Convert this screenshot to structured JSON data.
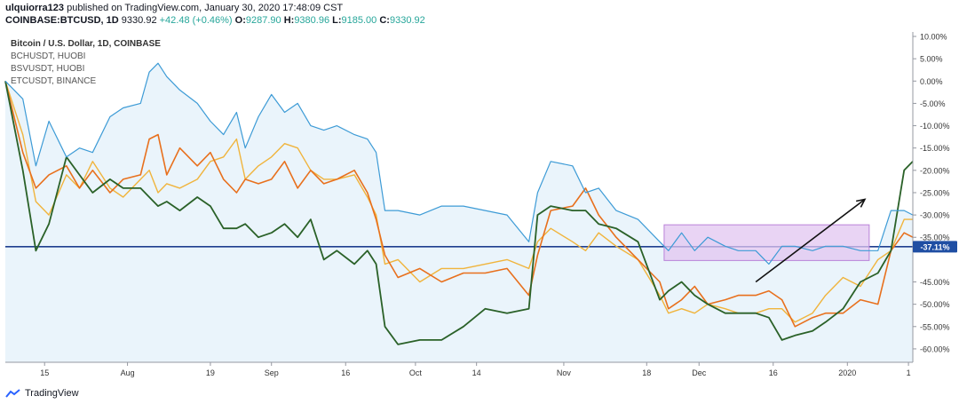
{
  "header": {
    "author": "ulquiorra123",
    "published": "published on TradingView.com, January 30, 2020 17:48:09 CST",
    "symbol": "COINBASE:BTCUSD, 1D",
    "last": "9330.92",
    "change": "+42.48 (+0.46%)",
    "o_label": "O:",
    "o_value": "9287.90",
    "h_label": "H:",
    "h_value": "9380.96",
    "l_label": "L:",
    "l_value": "9185.00",
    "c_label": "C:",
    "c_value": "9330.92"
  },
  "legend": {
    "main": "Bitcoin / U.S. Dollar, 1D, COINBASE",
    "items": [
      "BCHUSDT, HUOBI",
      "BSVUSDT, HUOBI",
      "ETCUSDT, BINANCE"
    ]
  },
  "footer": {
    "brand": "TradingView"
  },
  "colors": {
    "btc": "#3d9bd6",
    "btc_fill": "#eaf4fb",
    "bch": "#e8701d",
    "bsv": "#f0b43c",
    "etc": "#2a6128",
    "hline": "#1f3f8f",
    "rect_fill": "#e2c6f0",
    "rect_stroke": "#b982d8",
    "arrow": "#111111",
    "badge": "#1f4ea3"
  },
  "chart_data": {
    "type": "line",
    "y_unit": "%",
    "ylim": [
      -63,
      11
    ],
    "y_ticks": [
      10,
      5,
      0,
      -5,
      -10,
      -15,
      -20,
      -25,
      -30,
      -35,
      -45,
      -50,
      -55,
      -60
    ],
    "y_tick_labels": [
      "10.00%",
      "5.00%",
      "0.00%",
      "-5.00%",
      "-10.00%",
      "-15.00%",
      "-20.00%",
      "-25.00%",
      "-30.00%",
      "-35.00%",
      "-45.00%",
      "-50.00%",
      "-55.00%",
      "-60.00%"
    ],
    "x_range": [
      0,
      208
    ],
    "x_ticks": [
      {
        "x": 9,
        "label": "15"
      },
      {
        "x": 28,
        "label": "Aug"
      },
      {
        "x": 47,
        "label": "19"
      },
      {
        "x": 61,
        "label": "Sep"
      },
      {
        "x": 78,
        "label": "16"
      },
      {
        "x": 94,
        "label": "Oct"
      },
      {
        "x": 108,
        "label": "14"
      },
      {
        "x": 128,
        "label": "Nov"
      },
      {
        "x": 147,
        "label": "18"
      },
      {
        "x": 159,
        "label": "Dec"
      },
      {
        "x": 176,
        "label": "16"
      },
      {
        "x": 193,
        "label": "2020"
      },
      {
        "x": 207,
        "label": "1"
      }
    ],
    "current_level": -37.11,
    "current_label": "-37.11%",
    "series": [
      {
        "name": "Bitcoin / U.S. Dollar",
        "x": [
          0,
          4,
          7,
          10,
          14,
          17,
          20,
          24,
          27,
          31,
          33,
          35,
          37,
          40,
          44,
          47,
          50,
          53,
          55,
          58,
          61,
          64,
          67,
          70,
          73,
          76,
          80,
          83,
          85,
          87,
          90,
          95,
          100,
          105,
          110,
          115,
          120,
          122,
          125,
          130,
          133,
          136,
          140,
          145,
          150,
          152,
          155,
          158,
          161,
          165,
          168,
          172,
          175,
          178,
          181,
          185,
          188,
          192,
          196,
          200,
          203,
          206,
          208
        ],
        "y": [
          0,
          -4,
          -19,
          -9,
          -17,
          -15,
          -16,
          -8,
          -6,
          -5,
          2,
          4,
          1,
          -2,
          -5,
          -9,
          -12,
          -7,
          -15,
          -8,
          -3,
          -7,
          -5,
          -10,
          -11,
          -10,
          -12,
          -13,
          -16,
          -29,
          -29,
          -30,
          -28,
          -28,
          -29,
          -30,
          -36,
          -25,
          -18,
          -19,
          -25,
          -24,
          -29,
          -31,
          -36,
          -38,
          -34,
          -38,
          -35,
          -37,
          -38,
          -38,
          -41,
          -37,
          -37,
          -38,
          -37,
          -37,
          -38,
          -38,
          -29,
          -29,
          -30
        ]
      },
      {
        "name": "BCHUSDT",
        "x": [
          0,
          4,
          7,
          10,
          14,
          17,
          20,
          24,
          27,
          31,
          33,
          35,
          37,
          40,
          44,
          47,
          50,
          53,
          55,
          58,
          61,
          64,
          67,
          70,
          73,
          76,
          80,
          83,
          85,
          87,
          90,
          95,
          100,
          105,
          110,
          115,
          120,
          122,
          125,
          130,
          133,
          136,
          140,
          145,
          150,
          152,
          155,
          158,
          161,
          165,
          168,
          172,
          175,
          178,
          181,
          185,
          188,
          192,
          196,
          200,
          203,
          206,
          208
        ],
        "y": [
          0,
          -16,
          -24,
          -21,
          -19,
          -24,
          -20,
          -25,
          -22,
          -21,
          -13,
          -12,
          -21,
          -15,
          -19,
          -16,
          -22,
          -25,
          -22,
          -23,
          -22,
          -18,
          -24,
          -20,
          -23,
          -22,
          -20,
          -25,
          -31,
          -39,
          -44,
          -42,
          -45,
          -43,
          -43,
          -42,
          -48,
          -39,
          -29,
          -28,
          -24,
          -30,
          -35,
          -40,
          -45,
          -51,
          -49,
          -46,
          -50,
          -49,
          -48,
          -48,
          -47,
          -49,
          -55,
          -53,
          -52,
          -52,
          -49,
          -50,
          -38,
          -34,
          -35
        ]
      },
      {
        "name": "BSVUSDT",
        "x": [
          0,
          4,
          7,
          10,
          14,
          17,
          20,
          24,
          27,
          31,
          33,
          35,
          37,
          40,
          44,
          47,
          50,
          53,
          55,
          58,
          61,
          64,
          67,
          70,
          73,
          76,
          80,
          83,
          85,
          87,
          90,
          95,
          100,
          105,
          110,
          115,
          120,
          122,
          125,
          130,
          133,
          136,
          140,
          145,
          150,
          152,
          155,
          158,
          161,
          165,
          168,
          172,
          175,
          178,
          181,
          185,
          188,
          192,
          196,
          200,
          203,
          206,
          208
        ],
        "y": [
          0,
          -12,
          -27,
          -30,
          -21,
          -24,
          -18,
          -24,
          -26,
          -22,
          -20,
          -25,
          -23,
          -24,
          -22,
          -18,
          -17,
          -13,
          -22,
          -19,
          -17,
          -14,
          -15,
          -20,
          -22,
          -22,
          -21,
          -26,
          -30,
          -41,
          -40,
          -45,
          -42,
          -42,
          -41,
          -40,
          -42,
          -36,
          -33,
          -36,
          -38,
          -34,
          -37,
          -40,
          -48,
          -52,
          -51,
          -52,
          -50,
          -51,
          -52,
          -52,
          -51,
          -51,
          -54,
          -52,
          -48,
          -44,
          -46,
          -40,
          -38,
          -31,
          -31
        ]
      },
      {
        "name": "ETCUSDT",
        "x": [
          0,
          4,
          7,
          10,
          14,
          17,
          20,
          24,
          27,
          31,
          33,
          35,
          37,
          40,
          44,
          47,
          50,
          53,
          55,
          58,
          61,
          64,
          67,
          70,
          73,
          76,
          80,
          83,
          85,
          87,
          90,
          95,
          100,
          105,
          110,
          115,
          120,
          122,
          125,
          130,
          133,
          136,
          140,
          145,
          150,
          152,
          155,
          158,
          161,
          165,
          168,
          172,
          175,
          178,
          181,
          185,
          188,
          192,
          196,
          200,
          203,
          206,
          208
        ],
        "y": [
          0,
          -20,
          -38,
          -32,
          -17,
          -21,
          -25,
          -22,
          -24,
          -24,
          -26,
          -28,
          -27,
          -29,
          -26,
          -28,
          -33,
          -33,
          -32,
          -35,
          -34,
          -32,
          -35,
          -31,
          -40,
          -38,
          -41,
          -38,
          -41,
          -55,
          -59,
          -58,
          -58,
          -55,
          -51,
          -52,
          -51,
          -30,
          -28,
          -29,
          -29,
          -32,
          -33,
          -36,
          -49,
          -47,
          -45,
          -48,
          -50,
          -52,
          -52,
          -52,
          -53,
          -58,
          -57,
          -56,
          -54,
          -51,
          -45,
          -43,
          -38,
          -20,
          -18
        ]
      }
    ],
    "annotations": [
      {
        "type": "rectangle",
        "x0": 151,
        "x1": 198,
        "y0": -32.2,
        "y1": -40.2
      },
      {
        "type": "arrow",
        "x0": 172,
        "y0": -45,
        "x1": 197,
        "y1": -26.5
      }
    ]
  }
}
